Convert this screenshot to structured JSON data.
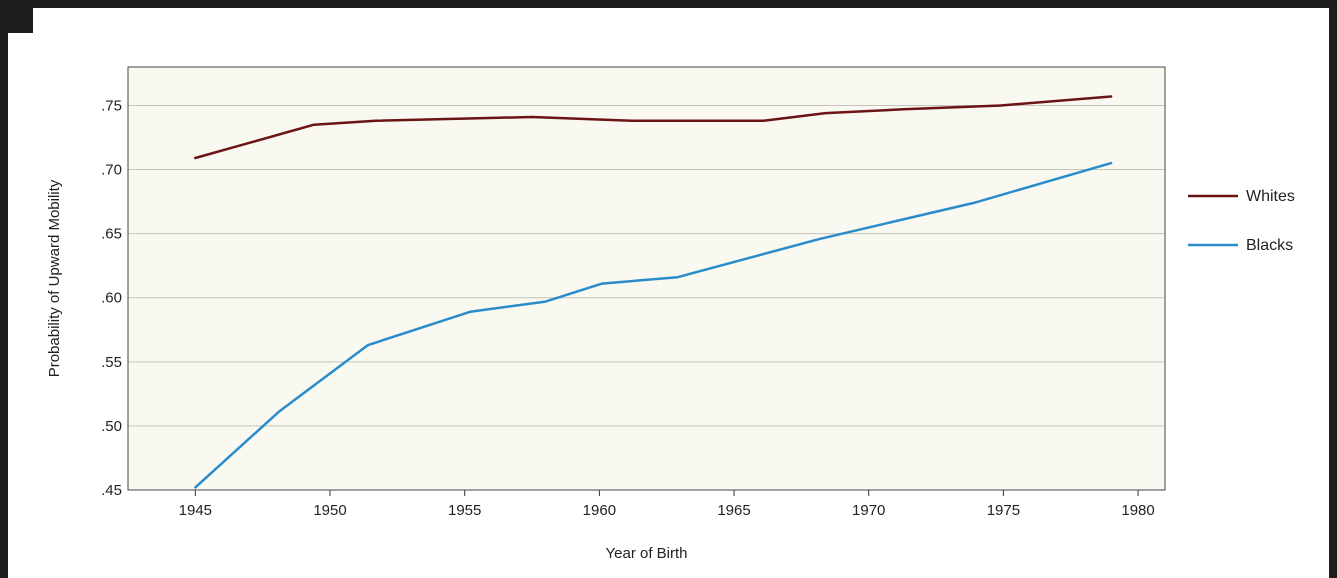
{
  "chart_data": {
    "type": "line",
    "xlabel": "Year of Birth",
    "ylabel": "Probability of Upward Mobility",
    "xlim": [
      1942.5,
      1981
    ],
    "ylim": [
      0.45,
      0.78
    ],
    "x_ticks": [
      1945,
      1950,
      1955,
      1960,
      1965,
      1970,
      1975,
      1980
    ],
    "y_ticks": [
      0.45,
      0.5,
      0.55,
      0.6,
      0.65,
      0.7,
      0.75
    ],
    "y_tick_labels": [
      ".45",
      ".50",
      ".55",
      ".60",
      ".65",
      ".70",
      ".75"
    ],
    "grid": "horizontal",
    "legend_position": "right",
    "series": [
      {
        "name": "Whites",
        "color": "#6b1416",
        "points": [
          [
            1945,
            0.709
          ],
          [
            1949.4,
            0.735
          ],
          [
            1951.7,
            0.738
          ],
          [
            1957.5,
            0.741
          ],
          [
            1961.2,
            0.738
          ],
          [
            1966.1,
            0.738
          ],
          [
            1968.4,
            0.744
          ],
          [
            1971.3,
            0.747
          ],
          [
            1974.9,
            0.75
          ],
          [
            1979,
            0.757
          ]
        ]
      },
      {
        "name": "Blacks",
        "color": "#2b8ccb",
        "points": [
          [
            1945,
            0.452
          ],
          [
            1948.1,
            0.511
          ],
          [
            1951.4,
            0.563
          ],
          [
            1955.2,
            0.589
          ],
          [
            1958,
            0.597
          ],
          [
            1960.1,
            0.611
          ],
          [
            1962.9,
            0.616
          ],
          [
            1968.2,
            0.646
          ],
          [
            1973.9,
            0.674
          ],
          [
            1979,
            0.705
          ]
        ]
      }
    ]
  }
}
